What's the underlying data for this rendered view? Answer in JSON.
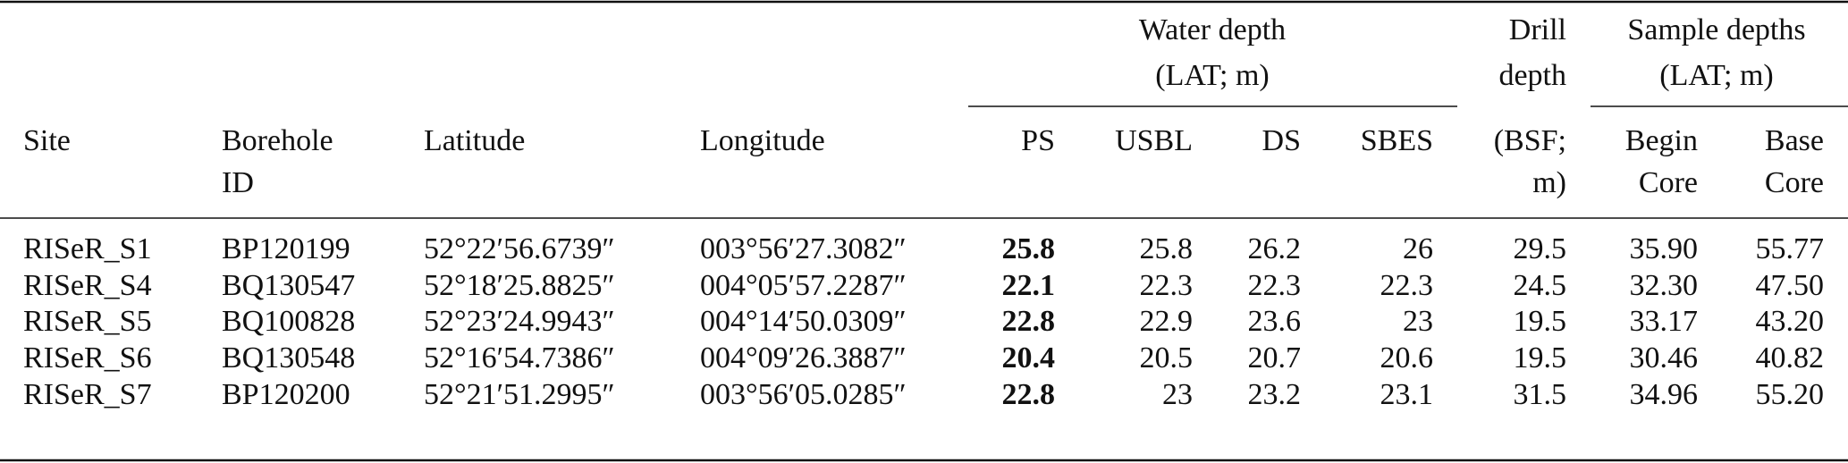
{
  "table": {
    "groups": [
      {
        "lines": [
          "Water depth",
          "(LAT; m)"
        ]
      },
      {
        "lines": [
          "Sample depths",
          "(LAT; m)"
        ]
      }
    ],
    "columns": [
      {
        "lines": [
          "Site"
        ]
      },
      {
        "lines": [
          "Borehole",
          "ID"
        ]
      },
      {
        "lines": [
          "Latitude"
        ]
      },
      {
        "lines": [
          "Longitude"
        ]
      },
      {
        "lines": [
          "PS"
        ]
      },
      {
        "lines": [
          "USBL"
        ]
      },
      {
        "lines": [
          "DS"
        ]
      },
      {
        "lines": [
          "SBES"
        ]
      },
      {
        "lines": [
          "Drill",
          "depth",
          "(BSF;",
          "m)"
        ]
      },
      {
        "lines": [
          "Begin",
          "Core"
        ]
      },
      {
        "lines": [
          "Base",
          "Core"
        ]
      }
    ],
    "rows": [
      [
        "RISeR_S1",
        "BP120199",
        "52°22′56.6739″",
        "003°56′27.3082″",
        "25.8",
        "25.8",
        "26.2",
        "26",
        "29.5",
        "35.90",
        "55.77"
      ],
      [
        "RISeR_S4",
        "BQ130547",
        "52°18′25.8825″",
        "004°05′57.2287″",
        "22.1",
        "22.3",
        "22.3",
        "22.3",
        "24.5",
        "32.30",
        "47.50"
      ],
      [
        "RISeR_S5",
        "BQ100828",
        "52°23′24.9943″",
        "004°14′50.0309″",
        "22.8",
        "22.9",
        "23.6",
        "23",
        "19.5",
        "33.17",
        "43.20"
      ],
      [
        "RISeR_S6",
        "BQ130548",
        "52°16′54.7386″",
        "004°09′26.3887″",
        "20.4",
        "20.5",
        "20.7",
        "20.6",
        "19.5",
        "30.46",
        "40.82"
      ],
      [
        "RISeR_S7",
        "BP120200",
        "52°21′51.2995″",
        "003°56′05.0285″",
        "22.8",
        "23",
        "23.2",
        "23.1",
        "31.5",
        "34.96",
        "55.20"
      ]
    ]
  }
}
